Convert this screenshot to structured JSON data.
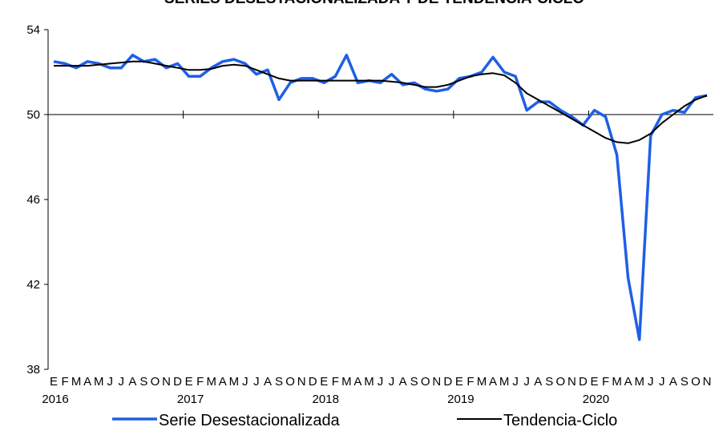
{
  "chart_data": {
    "type": "line",
    "title": "SERIES DESESTACIONALIZADA Y DE TENDENCIA-CICLO",
    "categories": [
      "E",
      "F",
      "M",
      "A",
      "M",
      "J",
      "J",
      "A",
      "S",
      "O",
      "N",
      "D",
      "E",
      "F",
      "M",
      "A",
      "M",
      "J",
      "J",
      "A",
      "S",
      "O",
      "N",
      "D",
      "E",
      "F",
      "M",
      "A",
      "M",
      "J",
      "J",
      "A",
      "S",
      "O",
      "N",
      "D",
      "E",
      "F",
      "M",
      "A",
      "M",
      "J",
      "J",
      "A",
      "S",
      "O",
      "N",
      "D",
      "E",
      "F",
      "M",
      "A",
      "M",
      "J",
      "J",
      "A",
      "S",
      "O",
      "N"
    ],
    "years": [
      "2016",
      "2017",
      "2018",
      "2019",
      "2020"
    ],
    "series": [
      {
        "name": "Serie Desestacionalizada",
        "color": "#1f5fe6",
        "width": 3.5,
        "values": [
          52.5,
          52.4,
          52.2,
          52.5,
          52.4,
          52.2,
          52.2,
          52.8,
          52.5,
          52.6,
          52.2,
          52.4,
          51.8,
          51.8,
          52.2,
          52.5,
          52.6,
          52.4,
          51.9,
          52.1,
          50.7,
          51.5,
          51.7,
          51.7,
          51.5,
          51.8,
          52.8,
          51.5,
          51.6,
          51.5,
          51.9,
          51.4,
          51.5,
          51.2,
          51.1,
          51.2,
          51.7,
          51.8,
          52.0,
          52.7,
          52.0,
          51.8,
          50.2,
          50.6,
          50.6,
          50.2,
          49.9,
          49.5,
          50.2,
          49.9,
          48.1,
          42.3,
          39.4,
          49.0,
          50.0,
          50.2,
          50.1,
          50.8,
          50.9
        ]
      },
      {
        "name": "Tendencia-Ciclo",
        "color": "#000000",
        "width": 2,
        "values": [
          52.3,
          52.3,
          52.3,
          52.3,
          52.35,
          52.4,
          52.45,
          52.5,
          52.5,
          52.4,
          52.3,
          52.2,
          52.1,
          52.1,
          52.15,
          52.3,
          52.35,
          52.3,
          52.1,
          51.9,
          51.7,
          51.6,
          51.6,
          51.6,
          51.6,
          51.6,
          51.6,
          51.6,
          51.6,
          51.6,
          51.55,
          51.5,
          51.4,
          51.3,
          51.3,
          51.4,
          51.6,
          51.8,
          51.9,
          51.95,
          51.85,
          51.5,
          51.0,
          50.7,
          50.4,
          50.1,
          49.8,
          49.5,
          49.2,
          48.9,
          48.7,
          48.65,
          48.8,
          49.1,
          49.6,
          50.0,
          50.4,
          50.7,
          50.9
        ]
      }
    ],
    "ylim": [
      38,
      54
    ],
    "yticks": [
      38,
      42,
      46,
      50,
      54
    ],
    "xaxis_cross": 50,
    "grid": false
  }
}
